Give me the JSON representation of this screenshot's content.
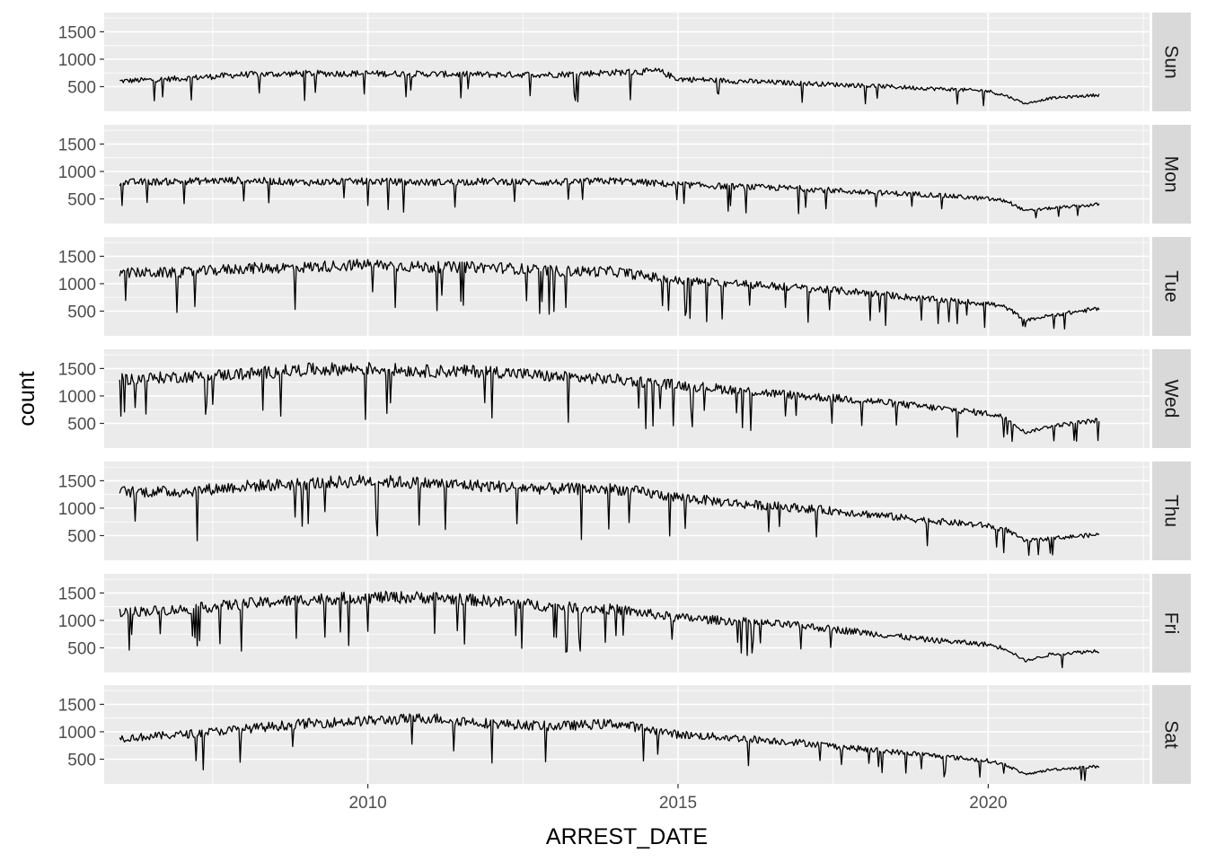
{
  "chart_data": {
    "type": "line",
    "layout": "facet-rows",
    "xlabel": "ARREST_DATE",
    "ylabel": "count",
    "x_ticks": [
      2010,
      2015,
      2020
    ],
    "xlim": [
      2005.75,
      2022.6
    ],
    "ylim": [
      50,
      1850
    ],
    "y_ticks": [
      500,
      1000,
      1500
    ],
    "grid": true,
    "background": "#ebebeb",
    "strip_background": "#d9d9d9",
    "line_color": "#000000",
    "facets": [
      {
        "label": "Sun",
        "x": [
          2006.0,
          2007.0,
          2008.0,
          2009.0,
          2010.0,
          2011.0,
          2012.0,
          2013.0,
          2014.0,
          2014.7,
          2015.0,
          2016.0,
          2017.0,
          2018.0,
          2019.0,
          2020.0,
          2020.3,
          2020.6,
          2021.0,
          2021.8
        ],
        "values": [
          600,
          650,
          720,
          740,
          740,
          730,
          720,
          720,
          760,
          780,
          640,
          600,
          560,
          520,
          470,
          420,
          330,
          190,
          290,
          350
        ]
      },
      {
        "label": "Mon",
        "x": [
          2006.0,
          2007.0,
          2008.0,
          2009.0,
          2010.0,
          2011.0,
          2012.0,
          2013.0,
          2014.0,
          2015.0,
          2016.0,
          2017.0,
          2018.0,
          2019.0,
          2020.0,
          2020.3,
          2020.6,
          2021.0,
          2021.8
        ],
        "values": [
          800,
          820,
          840,
          800,
          820,
          800,
          820,
          800,
          830,
          760,
          720,
          690,
          620,
          580,
          500,
          460,
          280,
          330,
          400
        ]
      },
      {
        "label": "Tue",
        "x": [
          2006.0,
          2007.0,
          2008.0,
          2009.0,
          2010.0,
          2011.0,
          2012.0,
          2013.0,
          2014.0,
          2015.0,
          2016.0,
          2017.0,
          2018.0,
          2019.0,
          2020.0,
          2020.3,
          2020.6,
          2021.0,
          2021.8
        ],
        "values": [
          1200,
          1200,
          1280,
          1300,
          1350,
          1300,
          1300,
          1230,
          1220,
          1050,
          1000,
          920,
          840,
          720,
          640,
          560,
          330,
          420,
          550
        ]
      },
      {
        "label": "Wed",
        "x": [
          2006.0,
          2007.0,
          2008.0,
          2009.0,
          2010.0,
          2011.0,
          2012.0,
          2013.0,
          2014.0,
          2015.0,
          2016.0,
          2017.0,
          2018.0,
          2019.0,
          2020.0,
          2020.3,
          2020.6,
          2021.0,
          2021.8
        ],
        "values": [
          1300,
          1350,
          1400,
          1480,
          1500,
          1450,
          1450,
          1350,
          1300,
          1200,
          1100,
          1000,
          920,
          800,
          680,
          600,
          330,
          450,
          560
        ]
      },
      {
        "label": "Thu",
        "x": [
          2006.0,
          2007.0,
          2008.0,
          2009.0,
          2010.0,
          2011.0,
          2012.0,
          2013.0,
          2014.0,
          2015.0,
          2016.0,
          2017.0,
          2018.0,
          2019.0,
          2020.0,
          2020.3,
          2020.6,
          2021.0,
          2021.8
        ],
        "values": [
          1300,
          1300,
          1400,
          1450,
          1500,
          1450,
          1400,
          1350,
          1350,
          1200,
          1080,
          1000,
          900,
          780,
          680,
          600,
          400,
          450,
          520
        ]
      },
      {
        "label": "Fri",
        "x": [
          2006.0,
          2007.0,
          2008.0,
          2009.0,
          2010.0,
          2011.0,
          2012.0,
          2013.0,
          2014.0,
          2015.0,
          2016.0,
          2017.0,
          2018.0,
          2019.0,
          2020.0,
          2020.3,
          2020.6,
          2021.0,
          2021.8
        ],
        "values": [
          1150,
          1200,
          1300,
          1380,
          1420,
          1420,
          1350,
          1250,
          1200,
          1050,
          980,
          900,
          780,
          650,
          560,
          480,
          260,
          380,
          450
        ]
      },
      {
        "label": "Sat",
        "x": [
          2006.0,
          2007.0,
          2008.0,
          2009.0,
          2010.0,
          2011.0,
          2012.0,
          2013.0,
          2014.0,
          2015.0,
          2016.0,
          2017.0,
          2018.0,
          2019.0,
          2020.0,
          2020.3,
          2020.6,
          2021.0,
          2021.8
        ],
        "values": [
          880,
          950,
          1050,
          1150,
          1200,
          1250,
          1150,
          1100,
          1150,
          950,
          880,
          800,
          680,
          580,
          470,
          390,
          220,
          310,
          370
        ]
      }
    ]
  }
}
